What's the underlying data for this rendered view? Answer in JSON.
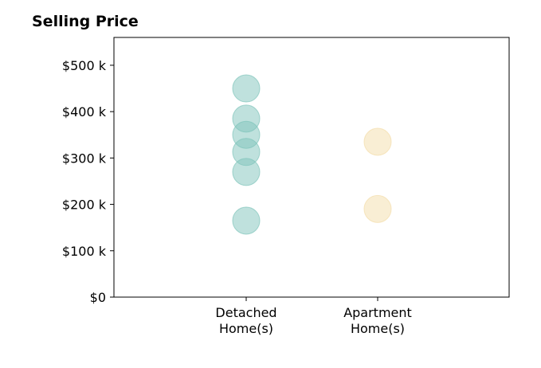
{
  "chart_data": {
    "type": "scatter",
    "title": "Selling Price",
    "xlabel": "",
    "ylabel": "",
    "categories": [
      "Detached\nHome(s)",
      "Apartment\nHome(s)"
    ],
    "ylim": [
      0,
      560000
    ],
    "y_ticks": [
      0,
      100000,
      200000,
      300000,
      400000,
      500000
    ],
    "y_tick_labels": [
      "$0",
      "$100 k",
      "$200 k",
      "$300 k",
      "$400 k",
      "$500 k"
    ],
    "grid": false,
    "series": [
      {
        "category": "Detached\nHome(s)",
        "color": "#7fc4bb",
        "values": [
          450000,
          385000,
          350000,
          313000,
          270000,
          165000
        ]
      },
      {
        "category": "Apartment\nHome(s)",
        "color": "#f3ddaa",
        "values": [
          335000,
          190000
        ]
      }
    ]
  }
}
